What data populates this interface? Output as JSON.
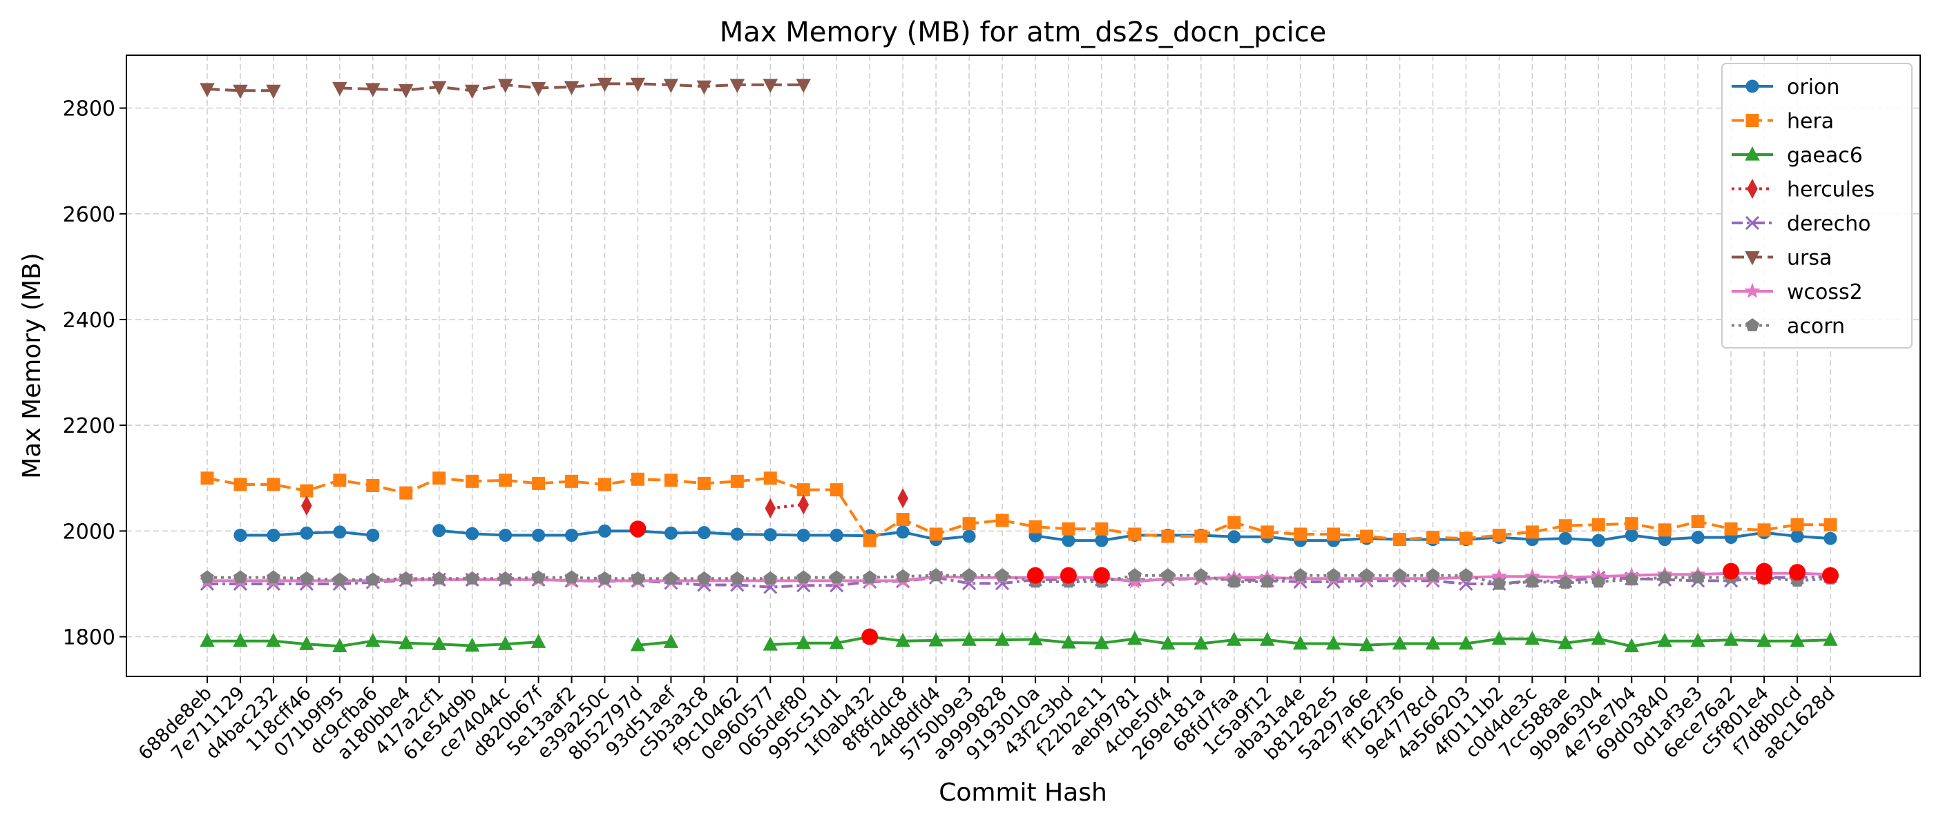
{
  "chart_data": {
    "type": "line",
    "title": "Max Memory (MB) for atm_ds2s_docn_pcice",
    "xlabel": "Commit Hash",
    "ylabel": "Max Memory (MB)",
    "ylim": [
      1725,
      2900
    ],
    "yticks": [
      1800,
      2000,
      2200,
      2400,
      2600,
      2800
    ],
    "grid": true,
    "legend_position": "top-right",
    "categories": [
      "688de8eb",
      "7e711129",
      "d4bac232",
      "118cff46",
      "071b9f95",
      "dc9cfba6",
      "a180bbe4",
      "417a2cf1",
      "61e54d9b",
      "ce74044c",
      "d820b67f",
      "5e13aaf2",
      "e39a250c",
      "8b52797d",
      "93d51aef",
      "c5b3a3c8",
      "f9c10462",
      "0e960577",
      "065def80",
      "995c51d1",
      "1f0ab432",
      "8f8fddc8",
      "24d8dfd4",
      "5750b9e3",
      "a9999828",
      "9193010a",
      "43f2c3bd",
      "f22b2e11",
      "aebf9781",
      "4cbe50f4",
      "269e181a",
      "68fd7faa",
      "1c5a9f12",
      "aba31a4e",
      "b81282e5",
      "5a297a6e",
      "ff162f36",
      "9e4778cd",
      "4a566203",
      "4f0111b2",
      "c0d4de3c",
      "7cc588ae",
      "9b9a6304",
      "4e75e7b4",
      "69d03840",
      "0d1af3e3",
      "6ece76a2",
      "c5f801e4",
      "f7d8b0cd",
      "a8c1628d"
    ],
    "series": [
      {
        "name": "orion",
        "color": "#1f77b4",
        "marker": "circle",
        "dash": "solid",
        "values": [
          null,
          1992,
          1992,
          1996,
          1998,
          1992,
          null,
          2001,
          1995,
          1992,
          1992,
          1992,
          2000,
          2000,
          1996,
          1997,
          1994,
          1993,
          1992,
          1992,
          1991,
          1998,
          1984,
          1990,
          null,
          1991,
          1982,
          1982,
          1992,
          1992,
          1992,
          1989,
          1989,
          1982,
          1982,
          1986,
          1984,
          1984,
          1984,
          1988,
          1984,
          1986,
          1982,
          1992,
          1984,
          1988,
          1988,
          1997,
          1990,
          1986
        ]
      },
      {
        "name": "hera",
        "color": "#ff7f0e",
        "marker": "square",
        "dash": "dash",
        "values": [
          2100,
          2088,
          2088,
          2076,
          2096,
          2086,
          2072,
          2100,
          2094,
          2096,
          2090,
          2094,
          2088,
          2098,
          2096,
          2090,
          2094,
          2100,
          2078,
          2078,
          1982,
          2022,
          1994,
          2014,
          2020,
          2008,
          2004,
          2004,
          1994,
          1990,
          1990,
          2016,
          1998,
          1994,
          1994,
          1990,
          1984,
          1988,
          1986,
          1992,
          1998,
          2010,
          2012,
          2014,
          2002,
          2018,
          2004,
          2002,
          2012,
          2012
        ]
      },
      {
        "name": "gaeac6",
        "color": "#2ca02c",
        "marker": "triangle-up",
        "dash": "solid",
        "values": [
          1792,
          1792,
          1792,
          1786,
          1782,
          1792,
          1788,
          1786,
          1783,
          1786,
          1790,
          null,
          null,
          1784,
          1790,
          null,
          null,
          1785,
          1788,
          1788,
          1800,
          1792,
          1793,
          1794,
          1794,
          1795,
          1789,
          1788,
          1796,
          1787,
          1787,
          1794,
          1794,
          1787,
          1787,
          1784,
          1787,
          1787,
          1787,
          1796,
          1796,
          1788,
          1796,
          1782,
          1792,
          1792,
          1794,
          1792,
          1792,
          1794
        ]
      },
      {
        "name": "hercules",
        "color": "#d62728",
        "marker": "diamond",
        "dash": "dot",
        "values": [
          null,
          null,
          null,
          2048,
          null,
          null,
          null,
          null,
          null,
          null,
          null,
          null,
          null,
          null,
          null,
          null,
          null,
          2043,
          2050,
          null,
          null,
          2062,
          null,
          null,
          null,
          null,
          null,
          null,
          null,
          null,
          null,
          null,
          null,
          null,
          null,
          null,
          null,
          null,
          null,
          null,
          null,
          null,
          null,
          null,
          null,
          null,
          null,
          null,
          null,
          null
        ]
      },
      {
        "name": "derecho",
        "color": "#9467bd",
        "marker": "x",
        "dash": "dashdot",
        "values": [
          1900,
          1900,
          1900,
          1900,
          1900,
          1903,
          1907,
          1908,
          1908,
          1908,
          1908,
          1906,
          1905,
          1906,
          1902,
          1898,
          1898,
          1894,
          1897,
          1897,
          1904,
          1905,
          1912,
          1901,
          1901,
          1908,
          1908,
          1908,
          1908,
          1908,
          1910,
          1908,
          1906,
          1904,
          1904,
          1906,
          1906,
          1906,
          1900,
          1900,
          1906,
          1905,
          1912,
          1910,
          1908,
          1906,
          1906,
          1912,
          1912,
          1914
        ]
      },
      {
        "name": "ursa",
        "color": "#8c564b",
        "marker": "triangle-down",
        "dash": "dash",
        "values": [
          2836,
          2833,
          2833,
          null,
          2838,
          2836,
          2834,
          2840,
          2833,
          2844,
          2838,
          2840,
          2846,
          2846,
          2844,
          2841,
          2844,
          2844,
          2844,
          null,
          null,
          null,
          null,
          null,
          null,
          null,
          null,
          null,
          null,
          null,
          null,
          null,
          null,
          null,
          null,
          null,
          null,
          null,
          null,
          null,
          null,
          null,
          null,
          null,
          null,
          null,
          null,
          null,
          null,
          null
        ]
      },
      {
        "name": "wcoss2",
        "color": "#e377c2",
        "marker": "star",
        "dash": "solid",
        "values": [
          1906,
          1906,
          1906,
          1906,
          1906,
          1906,
          1908,
          1908,
          1908,
          1908,
          1908,
          1906,
          1906,
          1906,
          1906,
          1906,
          1906,
          1906,
          1906,
          1906,
          1906,
          1906,
          1914,
          1912,
          1912,
          1912,
          1912,
          1912,
          1904,
          1910,
          1910,
          1912,
          1912,
          1910,
          1910,
          1910,
          1910,
          1910,
          1912,
          1914,
          1914,
          1912,
          1914,
          1916,
          1918,
          1918,
          1920,
          1920,
          1920,
          1918
        ]
      },
      {
        "name": "acorn",
        "color": "#7f7f7f",
        "marker": "pentagon",
        "dash": "dot",
        "values": [
          1912,
          1912,
          1912,
          1910,
          1908,
          1908,
          1910,
          1910,
          1910,
          1910,
          1912,
          1912,
          1910,
          1910,
          1910,
          1910,
          1910,
          1910,
          1912,
          1912,
          1912,
          1914,
          1916,
          1916,
          1916,
          1904,
          1904,
          1904,
          1916,
          1916,
          1916,
          1904,
          1904,
          1916,
          1916,
          1916,
          1916,
          1916,
          1916,
          1900,
          1904,
          1902,
          1904,
          1908,
          1912,
          1912,
          1912,
          1912,
          1906,
          1910
        ]
      }
    ],
    "highlight_points": {
      "color": "#ff0000",
      "points": [
        {
          "category": "8b52797d",
          "value": 2004
        },
        {
          "category": "1f0ab432",
          "value": 1800
        },
        {
          "category": "9193010a",
          "value": 1916
        },
        {
          "category": "43f2c3bd",
          "value": 1916
        },
        {
          "category": "f22b2e11",
          "value": 1916
        },
        {
          "category": "6ece76a2",
          "value": 1924
        },
        {
          "category": "c5f801e4",
          "value": 1924
        },
        {
          "category": "c5f801e4",
          "value": 1914
        },
        {
          "category": "f7d8b0cd",
          "value": 1922
        },
        {
          "category": "a8c1628d",
          "value": 1916
        }
      ]
    }
  }
}
